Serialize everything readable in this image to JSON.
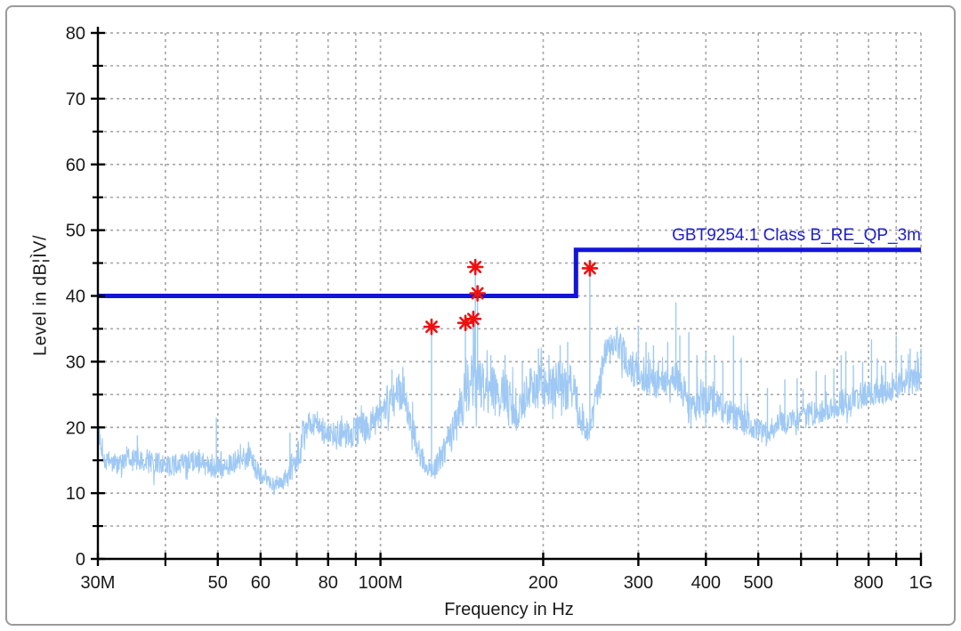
{
  "chart_data": {
    "type": "line",
    "title": "",
    "xlabel": "Frequency in Hz",
    "ylabel": "Level in dB¦ÌV/",
    "x_scale": "log",
    "x_range_mhz": [
      30,
      1000
    ],
    "ylim": [
      0,
      80
    ],
    "grid": "dashed gray, horizontal every 5 dB, vertical at log-decade multiples",
    "legend_position": "none",
    "y_tick_labels": [
      "0",
      "10",
      "20",
      "30",
      "40",
      "50",
      "60",
      "70",
      "80"
    ],
    "y_tick_values": [
      0,
      10,
      20,
      30,
      40,
      50,
      60,
      70,
      80
    ],
    "y_minor_tick_values": [
      5,
      15,
      25,
      35,
      45,
      55,
      65,
      75
    ],
    "x_ticks": [
      {
        "label": "30M",
        "mhz": 30
      },
      {
        "label": "50",
        "mhz": 50
      },
      {
        "label": "60",
        "mhz": 60
      },
      {
        "label": "80",
        "mhz": 80
      },
      {
        "label": "100M",
        "mhz": 100
      },
      {
        "label": "200",
        "mhz": 200
      },
      {
        "label": "300",
        "mhz": 300
      },
      {
        "label": "400",
        "mhz": 400
      },
      {
        "label": "500",
        "mhz": 500
      },
      {
        "label": "800",
        "mhz": 800
      },
      {
        "label": "1G",
        "mhz": 1000
      }
    ],
    "x_minor_ticks_mhz": [
      40,
      70,
      90,
      600,
      700,
      900
    ],
    "x_grid_mhz": [
      40,
      50,
      60,
      70,
      80,
      90,
      100,
      200,
      300,
      400,
      500,
      600,
      700,
      800,
      900,
      1000
    ],
    "colors": {
      "trace": "#9fc9f4",
      "limit_line": "#1414d8",
      "limit_label": "#2020cf",
      "marker": "#ee1111",
      "grid": "#a9a9a9",
      "axis": "#000000"
    },
    "limit_line": {
      "label": "GBT9254.1 Class B_RE_QP_3m",
      "points_mhz_db": [
        [
          30,
          40
        ],
        [
          230,
          40
        ],
        [
          230,
          47
        ],
        [
          1000,
          47
        ]
      ]
    },
    "markers": {
      "symbol": "asterisk",
      "points_mhz_db": [
        [
          124.3,
          35.3
        ],
        [
          143.6,
          35.9
        ],
        [
          148.5,
          36.5
        ],
        [
          149.8,
          44.4
        ],
        [
          151.2,
          40.4
        ],
        [
          244,
          44.2
        ]
      ]
    },
    "series": [
      {
        "name": "measured-spectrum",
        "envelope_mhz_db_noise": [
          [
            30,
            19.5,
            1.5
          ],
          [
            30.8,
            15,
            1.5
          ],
          [
            33,
            14.5,
            1.8
          ],
          [
            36,
            15.5,
            2
          ],
          [
            38,
            14.5,
            1.8
          ],
          [
            41,
            14.3,
            1.5
          ],
          [
            44,
            14.8,
            1.8
          ],
          [
            47,
            14.5,
            1.8
          ],
          [
            49,
            13.8,
            1.5
          ],
          [
            52,
            14.2,
            1.6
          ],
          [
            55,
            15,
            1.8
          ],
          [
            57,
            15.5,
            2
          ],
          [
            59,
            13.5,
            1.5
          ],
          [
            61,
            12.5,
            1.3
          ],
          [
            63,
            11.5,
            1.2
          ],
          [
            66,
            11.8,
            1.3
          ],
          [
            68,
            13.5,
            2
          ],
          [
            70,
            15.5,
            2.5
          ],
          [
            72,
            18.5,
            2.5
          ],
          [
            74,
            20.5,
            2
          ],
          [
            76,
            20.5,
            2.2
          ],
          [
            79,
            19.5,
            2.2
          ],
          [
            83,
            18.8,
            2.2
          ],
          [
            87,
            19,
            2.3
          ],
          [
            91,
            19.5,
            2.5
          ],
          [
            95,
            20,
            2.5
          ],
          [
            99,
            21.5,
            2.8
          ],
          [
            103,
            23.5,
            3
          ],
          [
            107,
            25,
            3
          ],
          [
            110,
            25.5,
            3
          ],
          [
            113,
            22.5,
            2.8
          ],
          [
            116,
            18.5,
            2.5
          ],
          [
            119,
            15,
            1.8
          ],
          [
            122,
            13.8,
            1.5
          ],
          [
            126,
            13.5,
            1.5
          ],
          [
            129,
            15.5,
            2
          ],
          [
            133,
            17.5,
            2.5
          ],
          [
            137,
            19.5,
            3
          ],
          [
            141,
            23,
            4
          ],
          [
            145,
            26,
            4
          ],
          [
            149,
            27.5,
            4.5
          ],
          [
            153,
            26.5,
            4
          ],
          [
            158,
            25.5,
            3.5
          ],
          [
            163,
            26,
            3.5
          ],
          [
            168,
            25.5,
            3.5
          ],
          [
            173,
            24,
            3.5
          ],
          [
            177,
            22.5,
            3.5
          ],
          [
            182,
            24,
            3.5
          ],
          [
            188,
            25.5,
            3.5
          ],
          [
            194,
            26,
            3.5
          ],
          [
            200,
            26.5,
            3.5
          ],
          [
            207,
            26,
            3.5
          ],
          [
            214,
            26.5,
            3.8
          ],
          [
            222,
            26.5,
            4
          ],
          [
            229,
            24.5,
            3.5
          ],
          [
            235,
            21,
            2.5
          ],
          [
            240,
            19.5,
            2
          ],
          [
            246,
            21,
            2.5
          ],
          [
            252,
            25,
            3
          ],
          [
            258,
            29.5,
            3
          ],
          [
            263,
            32,
            2.5
          ],
          [
            268,
            33,
            2.2
          ],
          [
            274,
            33,
            2.2
          ],
          [
            280,
            31.5,
            2.5
          ],
          [
            287,
            30,
            2.5
          ],
          [
            295,
            28.5,
            2.8
          ],
          [
            303,
            28,
            3
          ],
          [
            312,
            27.5,
            3
          ],
          [
            322,
            27.5,
            3
          ],
          [
            333,
            27,
            3
          ],
          [
            344,
            27.5,
            3
          ],
          [
            355,
            27.5,
            3
          ],
          [
            365,
            25.5,
            2.8
          ],
          [
            372,
            22.5,
            2.2
          ],
          [
            380,
            23,
            2.5
          ],
          [
            390,
            24,
            2.5
          ],
          [
            400,
            24.5,
            2.5
          ],
          [
            412,
            24,
            2.5
          ],
          [
            424,
            23.5,
            2.4
          ],
          [
            437,
            22.5,
            2.2
          ],
          [
            450,
            21.8,
            2.2
          ],
          [
            465,
            21.2,
            2
          ],
          [
            480,
            20.5,
            2
          ],
          [
            495,
            19.8,
            1.9
          ],
          [
            510,
            19.2,
            1.8
          ],
          [
            527,
            19.6,
            1.8
          ],
          [
            545,
            20.2,
            1.9
          ],
          [
            565,
            20.8,
            2
          ],
          [
            585,
            21.2,
            2
          ],
          [
            605,
            21.6,
            2
          ],
          [
            630,
            22.2,
            2
          ],
          [
            655,
            22.6,
            2
          ],
          [
            680,
            23,
            2
          ],
          [
            705,
            23.6,
            2.1
          ],
          [
            730,
            24,
            2.1
          ],
          [
            760,
            24.6,
            2.1
          ],
          [
            790,
            25.2,
            2.2
          ],
          [
            820,
            25.4,
            2.2
          ],
          [
            850,
            25.8,
            2.2
          ],
          [
            880,
            26.2,
            2.2
          ],
          [
            910,
            26.5,
            2.3
          ],
          [
            940,
            26.8,
            2.3
          ],
          [
            970,
            27.2,
            2.4
          ],
          [
            1000,
            28.5,
            2.6
          ]
        ],
        "spikes_mhz_db": [
          [
            30.2,
            20.3
          ],
          [
            35.5,
            18.8
          ],
          [
            49.7,
            21.5
          ],
          [
            57,
            17.8
          ],
          [
            68,
            19.2
          ],
          [
            105,
            28.8
          ],
          [
            110,
            29.2
          ],
          [
            124.3,
            35.3
          ],
          [
            143.6,
            35.8
          ],
          [
            148.5,
            36.5
          ],
          [
            149.8,
            44.3
          ],
          [
            151.2,
            40
          ],
          [
            160,
            31
          ],
          [
            170,
            31
          ],
          [
            183,
            30
          ],
          [
            196,
            32
          ],
          [
            205,
            31
          ],
          [
            215,
            32.5
          ],
          [
            222,
            33
          ],
          [
            244,
            43.8
          ],
          [
            300,
            35.4
          ],
          [
            310,
            33
          ],
          [
            320,
            32.5
          ],
          [
            340,
            33
          ],
          [
            352,
            39
          ],
          [
            358,
            34
          ],
          [
            372,
            34.5
          ],
          [
            385,
            31
          ],
          [
            400,
            31.5
          ],
          [
            415,
            31
          ],
          [
            430,
            30
          ],
          [
            450,
            34
          ],
          [
            465,
            30.6
          ],
          [
            520,
            26
          ],
          [
            560,
            27.3
          ],
          [
            590,
            27.5
          ],
          [
            640,
            28.6
          ],
          [
            665,
            28
          ],
          [
            690,
            29
          ],
          [
            712,
            31
          ],
          [
            726,
            31.6
          ],
          [
            750,
            29.5
          ],
          [
            780,
            30
          ],
          [
            810,
            33.4
          ],
          [
            830,
            30.5
          ],
          [
            860,
            30
          ],
          [
            900,
            34
          ],
          [
            920,
            31
          ],
          [
            955,
            32
          ],
          [
            985,
            31.5
          ],
          [
            1000,
            32
          ]
        ]
      }
    ]
  }
}
